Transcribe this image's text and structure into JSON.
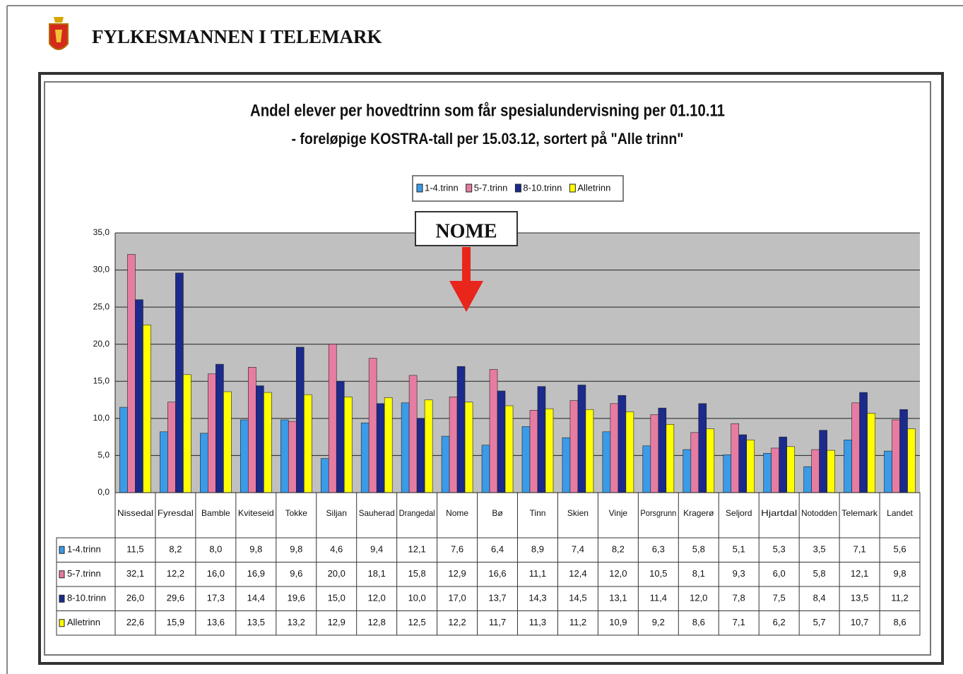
{
  "header": {
    "title": "FYLKESMANNEN I TELEMARK"
  },
  "chart_data": {
    "type": "bar",
    "title": "Andel elever per hovedtrinn som får spesialundervisning per 01.10.11",
    "subtitle": "- foreløpige KOSTRA-tall per 15.03.12, sortert på \"Alle trinn\"",
    "annotation": "NOME",
    "categories": [
      "Nissedal",
      "Fyresdal",
      "Bamble",
      "Kviteseid",
      "Tokke",
      "Siljan",
      "Sauherad",
      "Drangedal",
      "Nome",
      "Bø",
      "Tinn",
      "Skien",
      "Vinje",
      "Porsgrunn",
      "Kragerø",
      "Seljord",
      "Hjartdal",
      "Notodden",
      "Telemark",
      "Landet"
    ],
    "series": [
      {
        "name": "1-4.trinn",
        "color": "#3a9be8",
        "values": [
          11.5,
          8.2,
          8.0,
          9.8,
          9.8,
          4.6,
          9.4,
          12.1,
          7.6,
          6.4,
          8.9,
          7.4,
          8.2,
          6.3,
          5.8,
          5.1,
          5.3,
          3.5,
          7.1,
          5.6
        ],
        "value_labels": [
          "11,5",
          "8,2",
          "8,0",
          "9,8",
          "9,8",
          "4,6",
          "9,4",
          "12,1",
          "7,6",
          "6,4",
          "8,9",
          "7,4",
          "8,2",
          "6,3",
          "5,8",
          "5,1",
          "5,3",
          "3,5",
          "7,1",
          "5,6"
        ]
      },
      {
        "name": "5-7.trinn",
        "color": "#e77ca3",
        "values": [
          32.1,
          12.2,
          16.0,
          16.9,
          9.6,
          20.0,
          18.1,
          15.8,
          12.9,
          16.6,
          11.1,
          12.4,
          12.0,
          10.5,
          8.1,
          9.3,
          6.0,
          5.8,
          12.1,
          9.8
        ],
        "value_labels": [
          "32,1",
          "12,2",
          "16,0",
          "16,9",
          "9,6",
          "20,0",
          "18,1",
          "15,8",
          "12,9",
          "16,6",
          "11,1",
          "12,4",
          "12,0",
          "10,5",
          "8,1",
          "9,3",
          "6,0",
          "5,8",
          "12,1",
          "9,8"
        ]
      },
      {
        "name": "8-10.trinn",
        "color": "#1b2a8c",
        "values": [
          26.0,
          29.6,
          17.3,
          14.4,
          19.6,
          15.0,
          12.0,
          10.0,
          17.0,
          13.7,
          14.3,
          14.5,
          13.1,
          11.4,
          12.0,
          7.8,
          7.5,
          8.4,
          13.5,
          11.2
        ],
        "value_labels": [
          "26,0",
          "29,6",
          "17,3",
          "14,4",
          "19,6",
          "15,0",
          "12,0",
          "10,0",
          "17,0",
          "13,7",
          "14,3",
          "14,5",
          "13,1",
          "11,4",
          "12,0",
          "7,8",
          "7,5",
          "8,4",
          "13,5",
          "11,2"
        ]
      },
      {
        "name": "Alletrinn",
        "color": "#ffff00",
        "values": [
          22.6,
          15.9,
          13.6,
          13.5,
          13.2,
          12.9,
          12.8,
          12.5,
          12.2,
          11.7,
          11.3,
          11.2,
          10.9,
          9.2,
          8.6,
          7.1,
          6.2,
          5.7,
          10.7,
          8.6
        ],
        "value_labels": [
          "22,6",
          "15,9",
          "13,6",
          "13,5",
          "13,2",
          "12,9",
          "12,8",
          "12,5",
          "12,2",
          "11,7",
          "11,3",
          "11,2",
          "10,9",
          "9,2",
          "8,6",
          "7,1",
          "6,2",
          "5,7",
          "10,7",
          "8,6"
        ]
      }
    ],
    "ylim": [
      0,
      35
    ],
    "yticks": [
      {
        "value": 0,
        "label": "0,0"
      },
      {
        "value": 5,
        "label": "5,0"
      },
      {
        "value": 10,
        "label": "10,0"
      },
      {
        "value": 15,
        "label": "15,0"
      },
      {
        "value": 20,
        "label": "20,0"
      },
      {
        "value": 25,
        "label": "25,0"
      },
      {
        "value": 30,
        "label": "30,0"
      },
      {
        "value": 35,
        "label": "35,0"
      }
    ],
    "grid": true,
    "legend": "top"
  }
}
